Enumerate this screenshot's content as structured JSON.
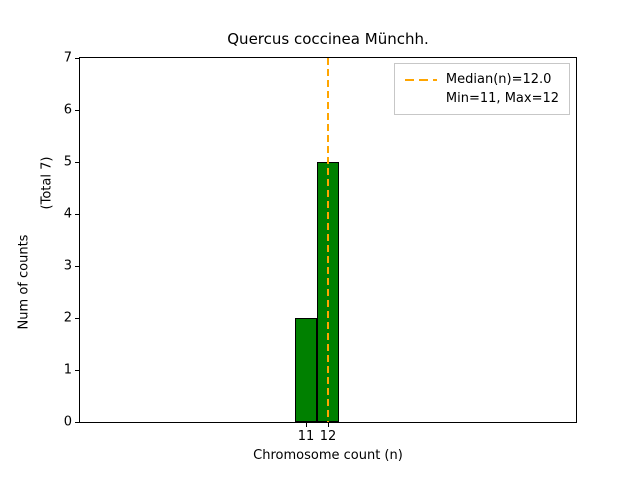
{
  "chart_data": {
    "type": "bar",
    "title": "Quercus coccinea Münchh.",
    "xlabel": "Chromosome count (n)",
    "ylabel": "Num of counts",
    "ylabel_note": "(Total 7)",
    "categories": [
      11,
      12
    ],
    "values": [
      2,
      5
    ],
    "total_counts": 7,
    "bar_width": 1,
    "bar_color": "#008000",
    "bar_edge_color": "#000000",
    "xlim": [
      0.75,
      23.25
    ],
    "ylim": [
      0,
      7
    ],
    "xticks": [
      11,
      12
    ],
    "yticks": [
      0,
      1,
      2,
      3,
      4,
      5,
      6,
      7
    ],
    "grid": false,
    "median_line": {
      "x": 12.0,
      "color": "#FFA500",
      "style": "dashed"
    },
    "legend": {
      "position": "upper right",
      "entries": [
        "Median(n)=12.0",
        "Min=11, Max=12"
      ],
      "swatch_color": "#FFA500"
    }
  }
}
